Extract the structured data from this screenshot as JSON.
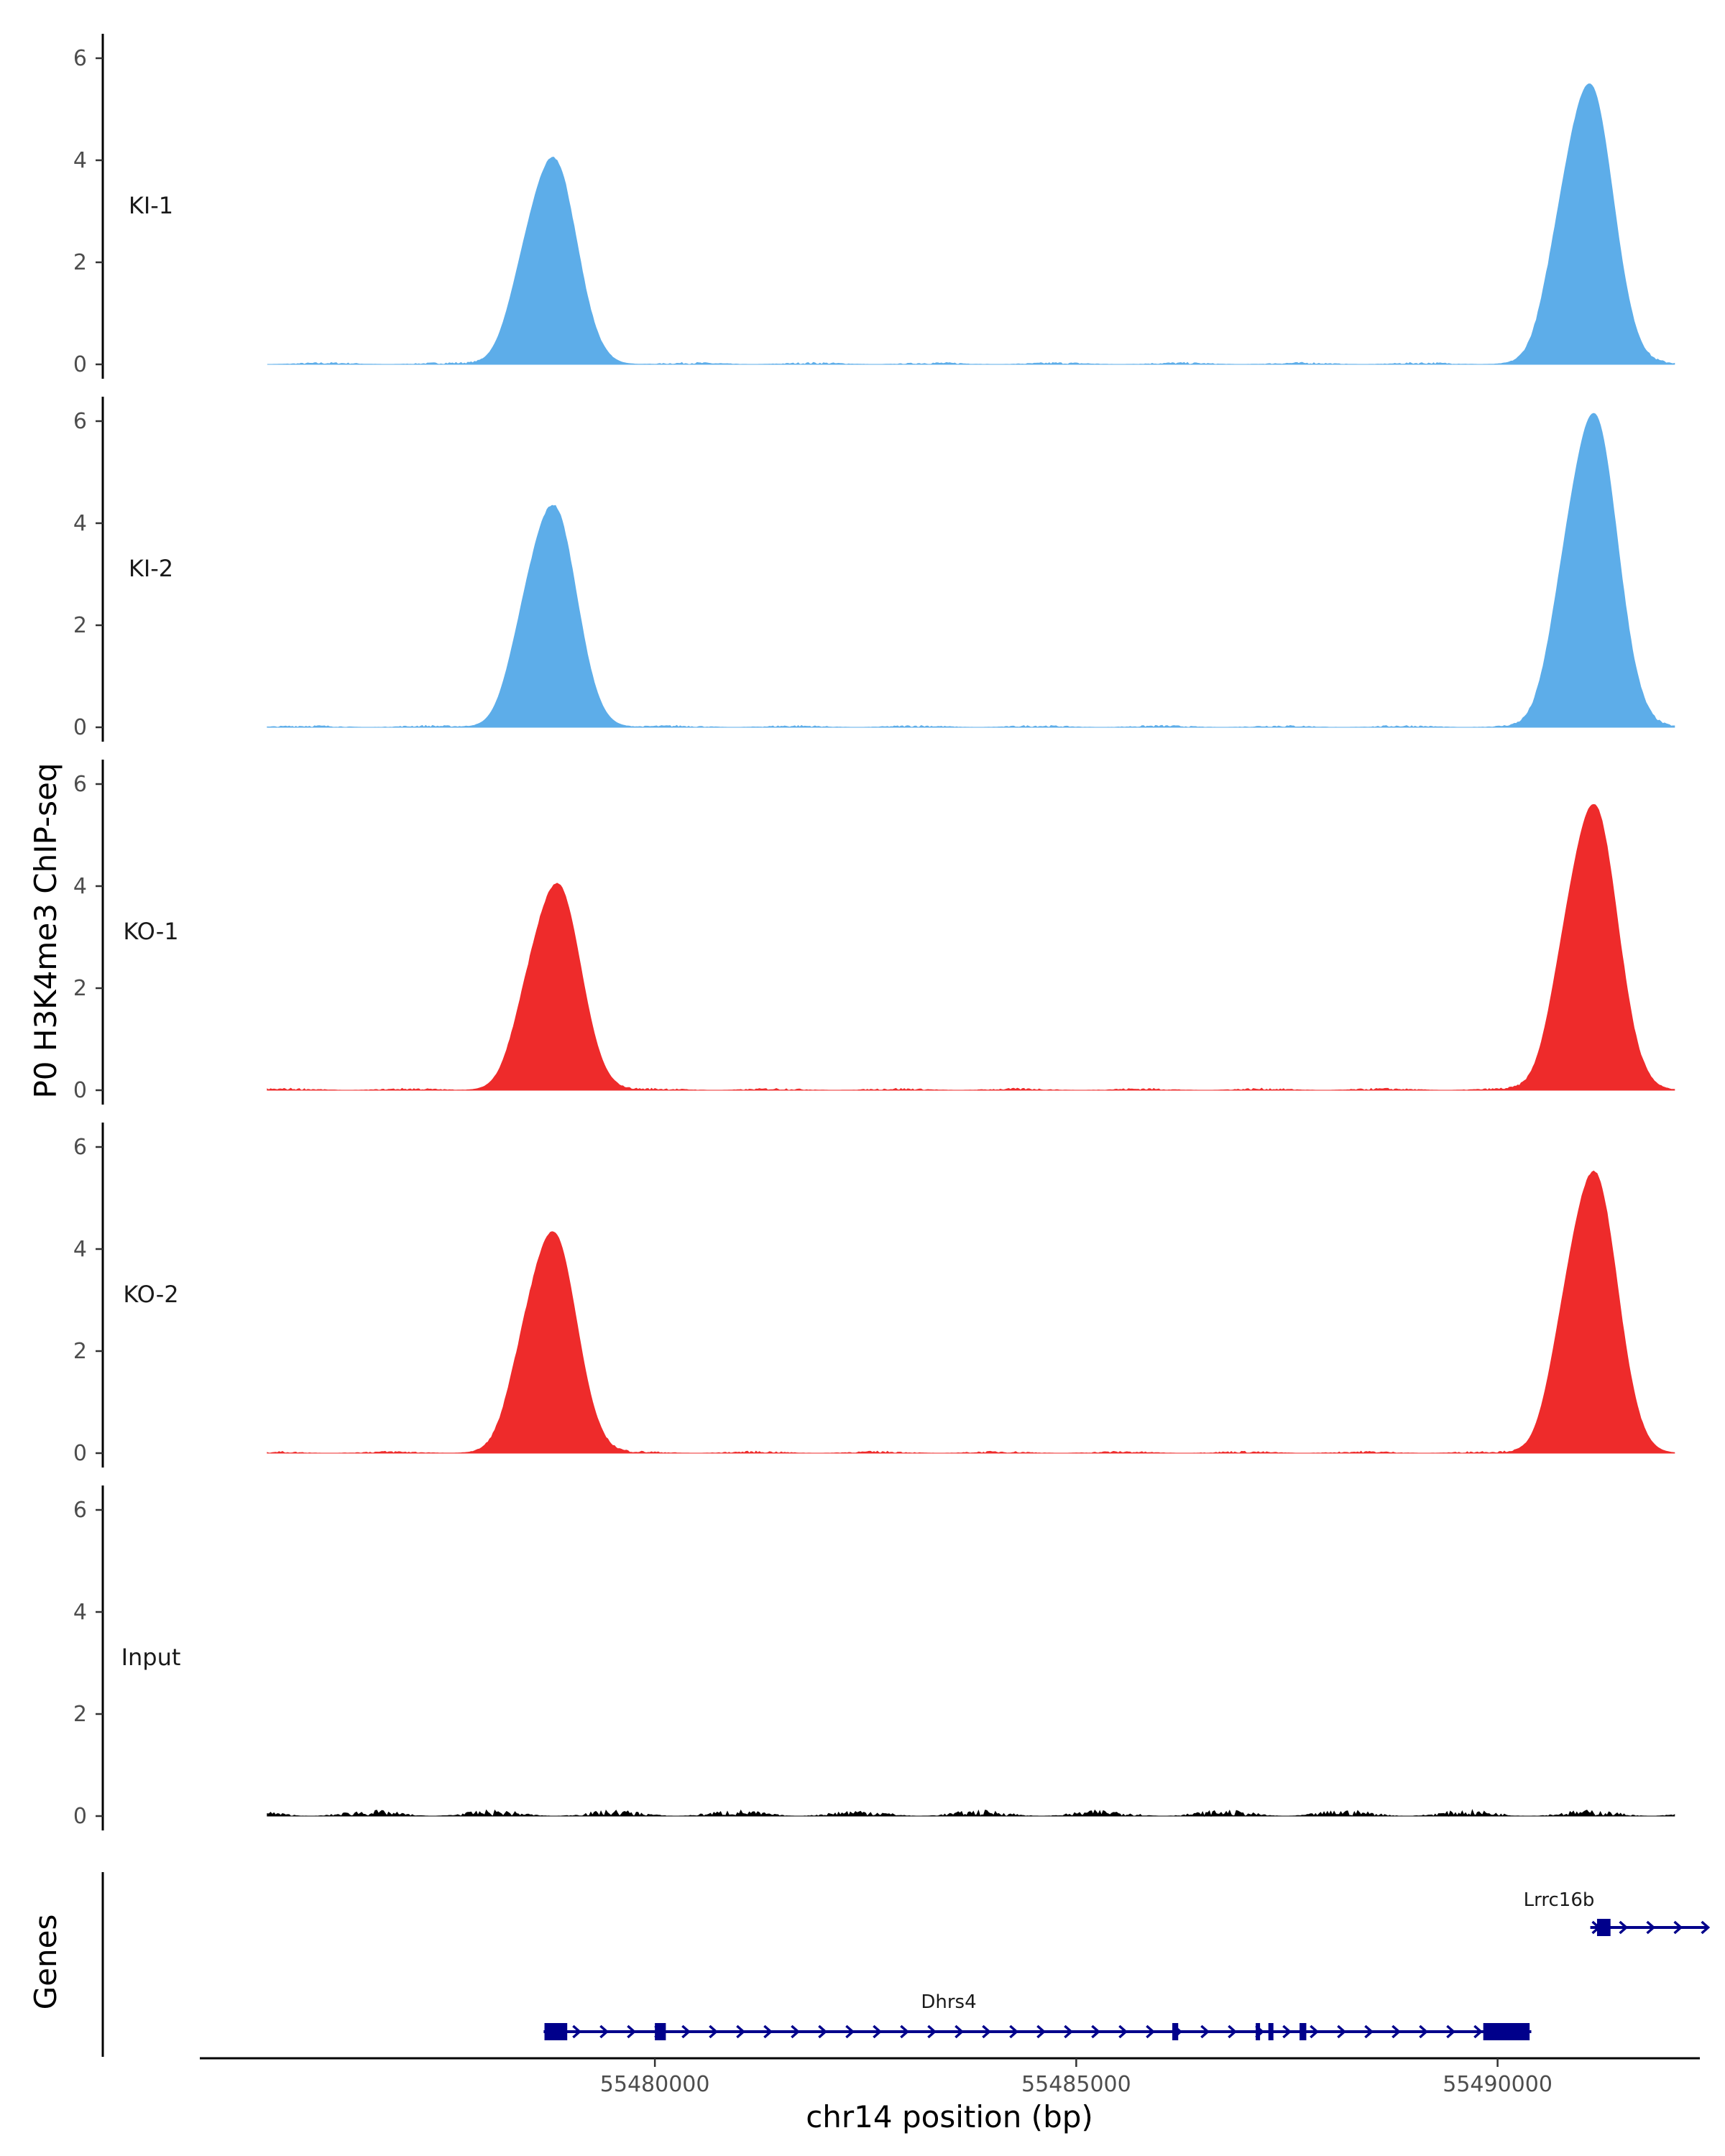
{
  "chart_data": {
    "type": "area",
    "ylabel": "P0 H3K4me3 ChIP-seq",
    "xlabel": "chr14 position (bp)",
    "genes_label": "Genes",
    "xlim": [
      55474600,
      55492400
    ],
    "ylim": [
      0,
      6.5
    ],
    "y_ticks": [
      "0",
      "2",
      "4",
      "6"
    ],
    "x_ticks": [
      {
        "value": 55480000,
        "label": "55480000"
      },
      {
        "value": 55485000,
        "label": "55485000"
      },
      {
        "value": 55490000,
        "label": "55490000"
      }
    ],
    "colors": {
      "KI": "#5dade9",
      "KO": "#ee2b2b",
      "Input": "#000000",
      "gene": "#00008b"
    },
    "tracks": [
      {
        "name": "KI-1",
        "color": "#5dade9",
        "peaks": [
          {
            "pos": 55478800,
            "height": 4.0
          },
          {
            "pos": 55491100,
            "height": 5.45
          }
        ]
      },
      {
        "name": "KI-2",
        "color": "#5dade9",
        "peaks": [
          {
            "pos": 55478800,
            "height": 4.3
          },
          {
            "pos": 55491150,
            "height": 6.1
          }
        ]
      },
      {
        "name": "KO-1",
        "color": "#ee2b2b",
        "peaks": [
          {
            "pos": 55478850,
            "height": 4.0
          },
          {
            "pos": 55491150,
            "height": 5.55
          }
        ]
      },
      {
        "name": "KO-2",
        "color": "#ee2b2b",
        "peaks": [
          {
            "pos": 55478800,
            "height": 4.3
          },
          {
            "pos": 55491150,
            "height": 5.45
          }
        ]
      },
      {
        "name": "Input",
        "color": "#000000",
        "peaks": []
      }
    ],
    "genes": [
      {
        "name": "Dhrs4",
        "start": 55478680,
        "end": 55490400,
        "strand": "+",
        "exons": [
          [
            55478690,
            55478960
          ],
          [
            55480000,
            55480130
          ],
          [
            55486140,
            55486210
          ],
          [
            55487130,
            55487170
          ],
          [
            55487280,
            55487340
          ],
          [
            55487650,
            55487730
          ],
          [
            55489830,
            55490380
          ]
        ]
      },
      {
        "name": "Lrrc16b",
        "start": 55491100,
        "end": 55492500,
        "strand": "+",
        "exons": [
          [
            55491180,
            55491340
          ]
        ]
      }
    ]
  }
}
